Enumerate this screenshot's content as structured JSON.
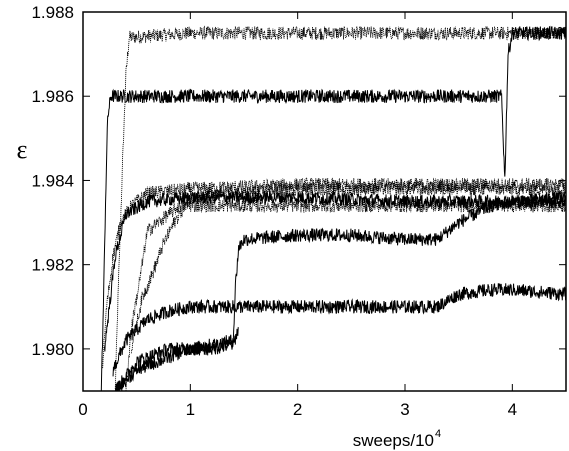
{
  "chart_data": {
    "type": "line",
    "xlabel": "sweeps/10",
    "xlabel_superscript": "4",
    "ylabel": "ε",
    "xlim": [
      0,
      4.5
    ],
    "ylim": [
      1.979,
      1.988
    ],
    "x_ticks": [
      0,
      1,
      2,
      3,
      4
    ],
    "x_tick_labels": [
      "0",
      "1",
      "2",
      "3",
      "4"
    ],
    "y_ticks": [
      1.98,
      1.982,
      1.984,
      1.986,
      1.988
    ],
    "y_tick_labels": [
      "1.980",
      "1.982",
      "1.984",
      "1.986",
      "1.988"
    ],
    "grid": false,
    "legend": "none",
    "line_color": "#000000",
    "series": [
      {
        "style": "dotted",
        "x": [
          0.3,
          0.33,
          0.37,
          0.4,
          0.43,
          0.46,
          1.0,
          2.0,
          3.0,
          4.0,
          4.5
        ],
        "y": [
          1.979,
          1.9815,
          1.9845,
          1.9865,
          1.9874,
          1.9874,
          1.9875,
          1.9875,
          1.9875,
          1.9875,
          1.9875
        ]
      },
      {
        "style": "solid",
        "x": [
          0.17,
          0.19,
          0.21,
          0.23,
          0.26,
          0.3,
          1.0,
          2.0,
          3.0,
          3.9,
          3.93,
          3.96,
          4.0,
          4.5
        ],
        "y": [
          1.979,
          1.981,
          1.9835,
          1.9855,
          1.986,
          1.986,
          1.986,
          1.986,
          1.986,
          1.986,
          1.984,
          1.987,
          1.9875,
          1.9875
        ]
      },
      {
        "style": "dotted",
        "x": [
          0.18,
          0.22,
          0.28,
          0.35,
          0.45,
          0.6,
          1.0,
          2.0,
          3.0,
          4.0,
          4.5
        ],
        "y": [
          1.9795,
          1.981,
          1.9822,
          1.983,
          1.9834,
          1.9837,
          1.9838,
          1.9839,
          1.9839,
          1.9839,
          1.9839
        ]
      },
      {
        "style": "solid",
        "x": [
          0.2,
          0.3,
          0.4,
          0.6,
          1.0,
          2.0,
          3.0,
          4.0,
          4.5
        ],
        "y": [
          1.98,
          1.9822,
          1.9832,
          1.9835,
          1.9836,
          1.9836,
          1.9835,
          1.9835,
          1.9835
        ]
      },
      {
        "style": "dotted",
        "x": [
          0.4,
          0.45,
          0.52,
          0.6,
          0.7,
          0.8,
          0.9,
          1.0,
          1.5,
          2.0,
          3.0,
          4.0,
          4.5
        ],
        "y": [
          1.979,
          1.9805,
          1.9815,
          1.9828,
          1.983,
          1.9832,
          1.9834,
          1.9834,
          1.9834,
          1.9834,
          1.9834,
          1.9834,
          1.9834
        ]
      },
      {
        "style": "dotted",
        "x": [
          0.45,
          0.55,
          0.65,
          0.75,
          0.85,
          0.95,
          1.0,
          2.0,
          3.0,
          4.0,
          4.5
        ],
        "y": [
          1.98,
          1.9812,
          1.9818,
          1.9825,
          1.983,
          1.9834,
          1.9836,
          1.9838,
          1.9838,
          1.9838,
          1.9838
        ]
      },
      {
        "style": "solid",
        "x": [
          0.3,
          0.5,
          0.8,
          1.0,
          1.2,
          1.4,
          1.42,
          1.45,
          1.5,
          2.0,
          2.5,
          3.0,
          3.3,
          3.5,
          3.8,
          4.0,
          4.5
        ],
        "y": [
          1.979,
          1.9797,
          1.98,
          1.98,
          1.9801,
          1.9802,
          1.9815,
          1.9824,
          1.9826,
          1.9827,
          1.9827,
          1.9826,
          1.9826,
          1.983,
          1.9834,
          1.9835,
          1.9836
        ]
      },
      {
        "style": "solid",
        "x": [
          0.28,
          0.4,
          0.6,
          0.8,
          1.0,
          1.5,
          2.0,
          2.5,
          3.0,
          3.3,
          3.5,
          3.8,
          4.0,
          4.5
        ],
        "y": [
          1.9795,
          1.9802,
          1.9807,
          1.9809,
          1.981,
          1.981,
          1.981,
          1.981,
          1.981,
          1.981,
          1.9813,
          1.9814,
          1.9814,
          1.9813
        ]
      },
      {
        "style": "solid",
        "x": [
          0.3,
          0.5,
          0.7,
          0.9,
          1.0,
          1.2,
          1.4,
          1.45
        ],
        "y": [
          1.979,
          1.9795,
          1.9797,
          1.9799,
          1.98,
          1.98,
          1.9801,
          1.9805
        ]
      }
    ]
  }
}
